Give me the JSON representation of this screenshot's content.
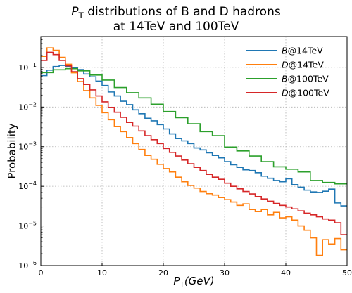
{
  "chart_data": {
    "type": "line",
    "title_lines": [
      "P_T distributions of B and D hadrons",
      "at 14TeV and 100TeV"
    ],
    "title_parts": [
      [
        {
          "t": "P",
          "i": true
        },
        {
          "t": "T",
          "sub": true
        },
        {
          "t": " distributions of B and D hadrons"
        }
      ],
      [
        {
          "t": "at 14TeV and 100TeV"
        }
      ]
    ],
    "xlabel_parts": [
      {
        "t": "P",
        "i": true
      },
      {
        "t": "T",
        "sub": true
      },
      {
        "t": "(",
        "i": true
      },
      {
        "t": "GeV",
        "i": true
      },
      {
        "t": ")",
        "i": true
      }
    ],
    "xlabel": "P_T(GeV)",
    "ylabel": "Probability",
    "xlim": [
      0,
      50
    ],
    "ylim": [
      1e-06,
      0.6
    ],
    "yscale": "log",
    "grid": true,
    "legend_position": "top-right",
    "xticks": [
      0,
      10,
      20,
      30,
      40,
      50
    ],
    "yticks": [
      {
        "value": 1e-06,
        "base": "10",
        "exp": "−6"
      },
      {
        "value": 1e-05,
        "base": "10",
        "exp": "−5"
      },
      {
        "value": 0.0001,
        "base": "10",
        "exp": "−4"
      },
      {
        "value": 0.001,
        "base": "10",
        "exp": "−3"
      },
      {
        "value": 0.01,
        "base": "10",
        "exp": "−2"
      },
      {
        "value": 0.1,
        "base": "10",
        "exp": "−1"
      }
    ],
    "series": [
      {
        "name": "B@14TeV",
        "legend_parts": [
          {
            "t": "B",
            "i": true
          },
          {
            "t": "@14TeV"
          }
        ],
        "color": "#1f77b4",
        "bin_width": 1,
        "values": [
          0.062,
          0.085,
          0.105,
          0.112,
          0.105,
          0.098,
          0.088,
          0.068,
          0.058,
          0.045,
          0.035,
          0.024,
          0.019,
          0.014,
          0.0115,
          0.0085,
          0.0068,
          0.0052,
          0.0045,
          0.0036,
          0.0028,
          0.0021,
          0.0016,
          0.0014,
          0.0012,
          0.00093,
          0.00083,
          0.0007,
          0.0006,
          0.00052,
          0.00042,
          0.00035,
          0.0003,
          0.00026,
          0.00025,
          0.00022,
          0.00018,
          0.00016,
          0.00014,
          0.00013,
          0.000155,
          0.00011,
          9.5e-05,
          8e-05,
          7.2e-05,
          7e-05,
          7.5e-05,
          8.5e-05,
          3.8e-05,
          3.2e-05
        ]
      },
      {
        "name": "D@14TeV",
        "legend_parts": [
          {
            "t": "D",
            "i": true
          },
          {
            "t": "@14TeV"
          }
        ],
        "color": "#ff7f0e",
        "bin_width": 1,
        "values": [
          0.19,
          0.31,
          0.27,
          0.18,
          0.12,
          0.073,
          0.044,
          0.026,
          0.017,
          0.011,
          0.0072,
          0.0048,
          0.0032,
          0.0024,
          0.0017,
          0.0012,
          0.00085,
          0.0006,
          0.00048,
          0.00036,
          0.00028,
          0.00023,
          0.00017,
          0.00013,
          0.000105,
          9e-05,
          7.4e-05,
          6.5e-05,
          6e-05,
          5.2e-05,
          4.6e-05,
          4e-05,
          3.3e-05,
          3.6e-05,
          2.6e-05,
          2.3e-05,
          2.6e-05,
          1.9e-05,
          2.2e-05,
          1.6e-05,
          1.7e-05,
          1.4e-05,
          1e-05,
          7.8e-06,
          5e-06,
          1.8e-06,
          4.5e-06,
          3.5e-06,
          4.8e-06,
          2.5e-06
        ]
      },
      {
        "name": "B@100TeV",
        "legend_parts": [
          {
            "t": "B",
            "i": true
          },
          {
            "t": "@100TeV"
          }
        ],
        "color": "#2ca02c",
        "bin_width": 2,
        "values": [
          0.074,
          0.087,
          0.093,
          0.082,
          0.064,
          0.048,
          0.031,
          0.023,
          0.017,
          0.0118,
          0.0077,
          0.0054,
          0.0038,
          0.0024,
          0.0019,
          0.00098,
          0.00078,
          0.00058,
          0.00042,
          0.00031,
          0.00027,
          0.00023,
          0.00014,
          0.000125,
          0.000115
        ]
      },
      {
        "name": "D@100TeV",
        "legend_parts": [
          {
            "t": "D",
            "i": true
          },
          {
            "t": "@100TeV"
          }
        ],
        "color": "#d62728",
        "bin_width": 1,
        "values": [
          0.15,
          0.24,
          0.21,
          0.15,
          0.11,
          0.078,
          0.052,
          0.037,
          0.027,
          0.019,
          0.0135,
          0.0098,
          0.0074,
          0.0055,
          0.0041,
          0.0033,
          0.0025,
          0.0019,
          0.0015,
          0.0012,
          0.0009,
          0.00072,
          0.00058,
          0.00046,
          0.00037,
          0.0003,
          0.00025,
          0.0002,
          0.00017,
          0.00015,
          0.00012,
          0.0001,
          8.6e-05,
          7.4e-05,
          6.4e-05,
          5.5e-05,
          4.8e-05,
          4.2e-05,
          3.7e-05,
          3.3e-05,
          3e-05,
          2.7e-05,
          2.4e-05,
          2.1e-05,
          1.9e-05,
          1.7e-05,
          1.5e-05,
          1.4e-05,
          1.2e-05,
          6e-06
        ]
      }
    ]
  }
}
